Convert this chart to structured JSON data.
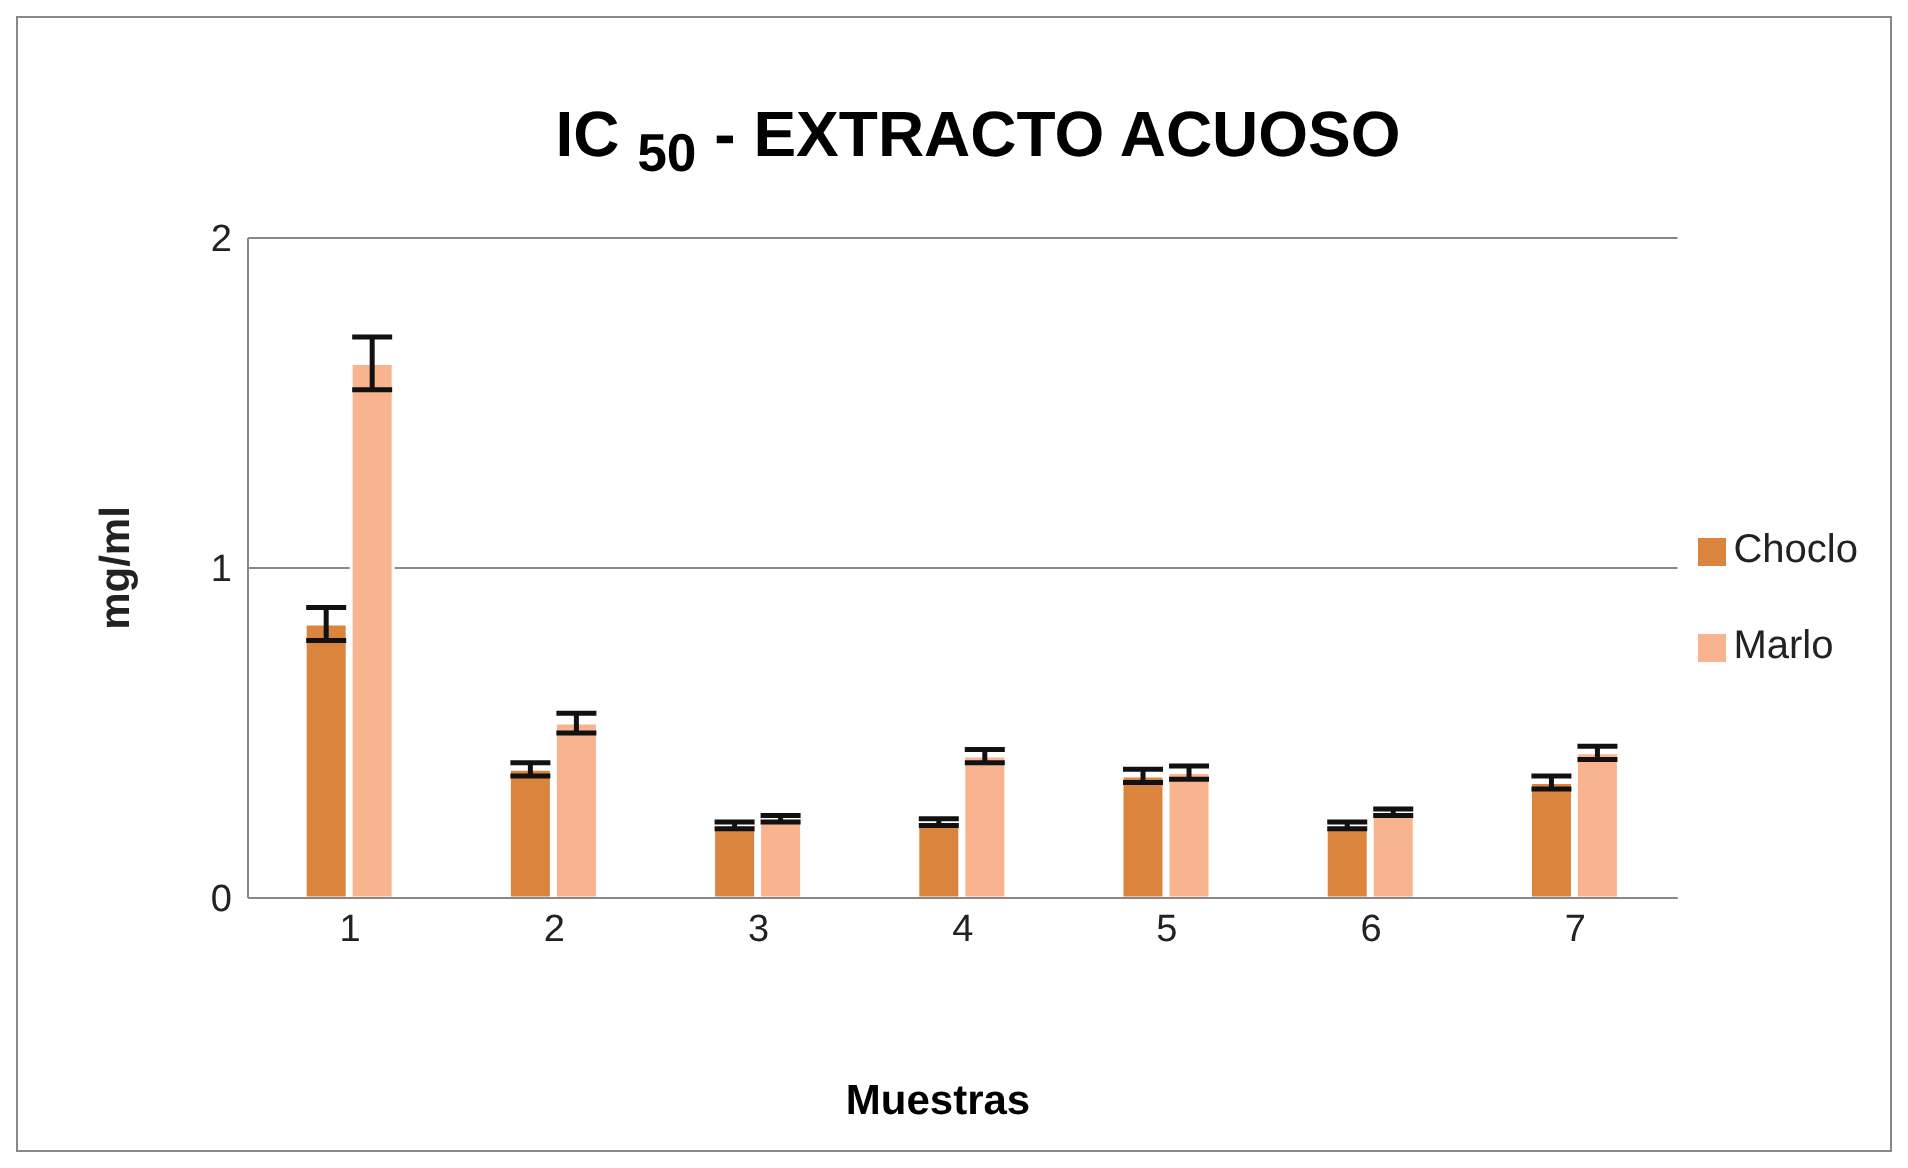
{
  "chart_data": {
    "type": "bar",
    "title": "IC $_{50}$ - EXTRACTO ACUOSO",
    "xlabel": "Muestras",
    "ylabel": "mg/ml",
    "categories": [
      "1",
      "2",
      "3",
      "4",
      "5",
      "6",
      "7"
    ],
    "series": [
      {
        "name": "Choclo",
        "color": "#db843d",
        "values": [
          0.83,
          0.39,
          0.22,
          0.23,
          0.37,
          0.22,
          0.35
        ],
        "errors": [
          0.05,
          0.02,
          0.01,
          0.01,
          0.02,
          0.01,
          0.02
        ]
      },
      {
        "name": "Marlo",
        "color": "#f9b38f",
        "values": [
          1.62,
          0.53,
          0.24,
          0.43,
          0.38,
          0.26,
          0.44
        ],
        "errors": [
          0.08,
          0.03,
          0.01,
          0.02,
          0.02,
          0.01,
          0.02
        ]
      }
    ],
    "ylim": [
      0,
      2
    ],
    "yticks": [
      0,
      1,
      2
    ],
    "grid": "y",
    "legend": "right"
  }
}
